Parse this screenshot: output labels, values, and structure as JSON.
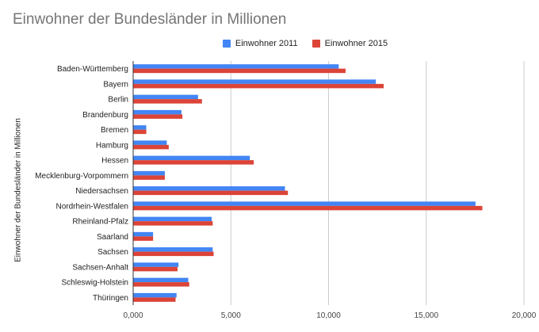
{
  "chart_data": {
    "type": "bar",
    "orientation": "horizontal",
    "title": "Einwohner der Bundesländer in Millionen",
    "ylabel": "Einwohner der Bundesländer in Millionen",
    "xlabel": "",
    "xlim": [
      0,
      20000
    ],
    "x_ticks": [
      "0,000",
      "5,000",
      "10,000",
      "15,000",
      "20,000"
    ],
    "x_tick_values": [
      0,
      5000,
      10000,
      15000,
      20000
    ],
    "grid": true,
    "legend_position": "top",
    "categories": [
      "Baden-Württemberg",
      "Bayern",
      "Berlin",
      "Brandenburg",
      "Bremen",
      "Hamburg",
      "Hessen",
      "Mecklenburg-Vorpommern",
      "Niedersachsen",
      "Nordrhein-Westfalen",
      "Rheinland-Pfalz",
      "Saarland",
      "Sachsen",
      "Sachsen-Anhalt",
      "Schleswig-Holstein",
      "Thüringen"
    ],
    "series": [
      {
        "name": "Einwohner 2011",
        "color": "#4285f4",
        "values": [
          10500,
          12400,
          3300,
          2450,
          650,
          1700,
          5950,
          1600,
          7750,
          17500,
          4000,
          1000,
          4050,
          2300,
          2800,
          2200
        ]
      },
      {
        "name": "Einwohner 2015",
        "color": "#db4437",
        "values": [
          10850,
          12800,
          3500,
          2500,
          650,
          1800,
          6150,
          1600,
          7900,
          17850,
          4050,
          1000,
          4100,
          2250,
          2850,
          2150
        ]
      }
    ]
  }
}
